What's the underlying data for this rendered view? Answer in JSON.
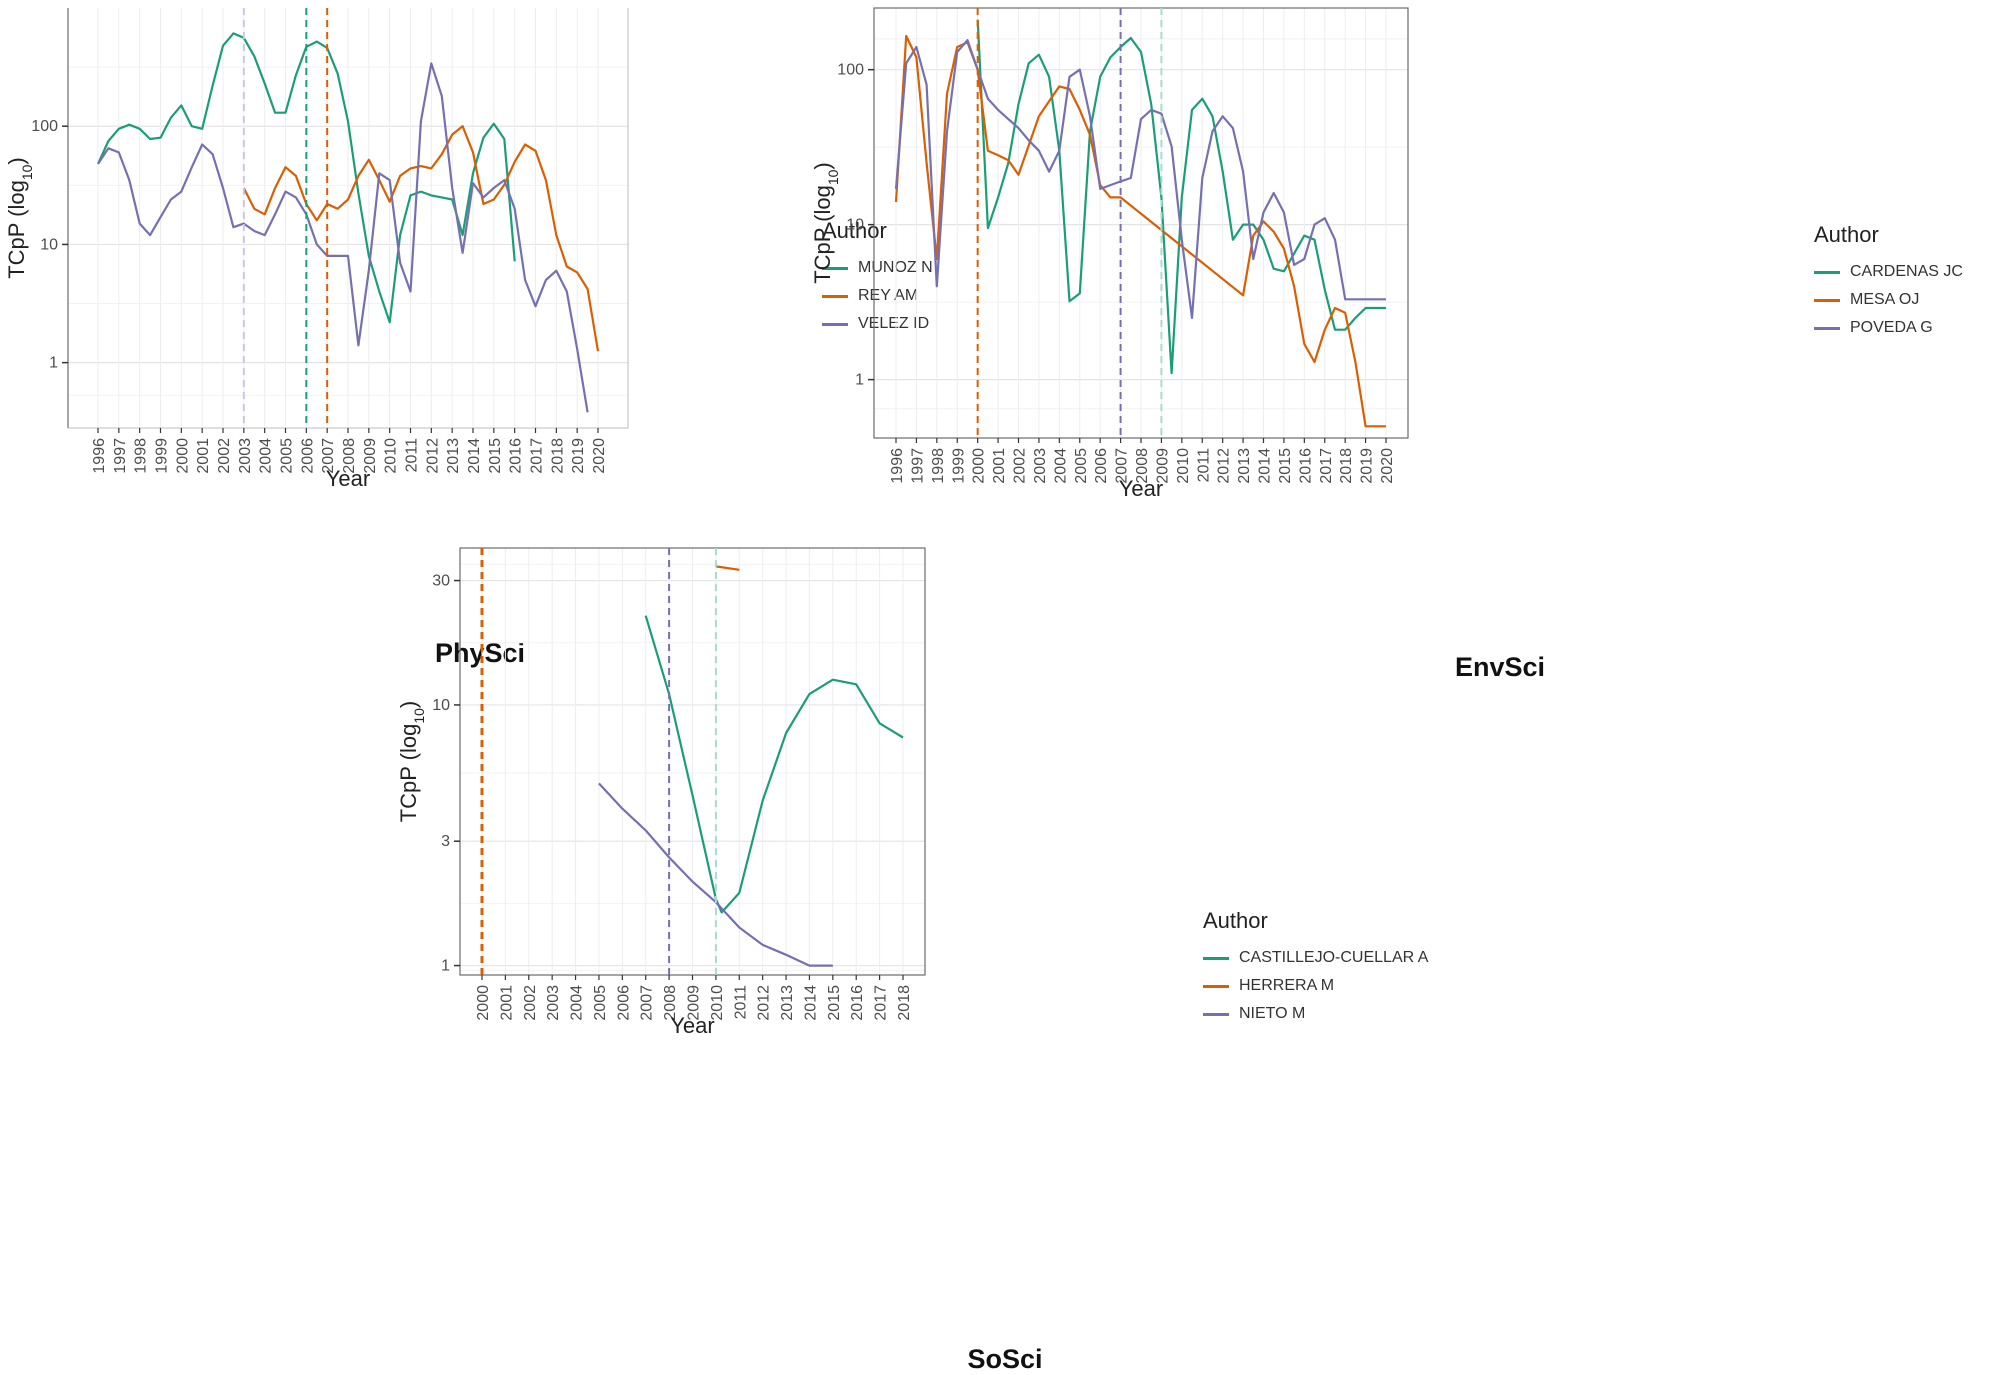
{
  "chart_data": [
    {
      "id": "physci",
      "type": "line",
      "caption": "PhySci",
      "xlabel": "Year",
      "ylabel": "TCpP (log10)",
      "ylabel_main": "TCpP (log",
      "ylabel_sub": "10",
      "ylabel_close": ")",
      "yscale": "log10",
      "ylim": [
        0.28,
        1000
      ],
      "yticks": [
        1,
        10,
        100
      ],
      "ytick_labels": [
        "1",
        "10",
        "100"
      ],
      "categories": [
        "1996",
        "1997",
        "1998",
        "1999",
        "2000",
        "2001",
        "2002",
        "2003",
        "2004",
        "2005",
        "2006",
        "2007",
        "2008",
        "2009",
        "2010",
        "2011",
        "2012",
        "2013",
        "2014",
        "2015",
        "2016",
        "2017",
        "2018",
        "2019",
        "2020"
      ],
      "legend_title": "Author",
      "series": [
        {
          "name": "MUNOZ N",
          "color": "#1b9e77",
          "x": [
            1996,
            1996.5,
            1997,
            1997.5,
            1998,
            1998.5,
            1999,
            1999.5,
            2000,
            2000.5,
            2001,
            2001.5,
            2002,
            2002.5,
            2003,
            2003.5,
            2004,
            2004.5,
            2005,
            2005.5,
            2006,
            2006.5,
            2007,
            2007.5,
            2008,
            2008.5,
            2009,
            2009.5,
            2010,
            2010.5,
            2011,
            2011.5,
            2012,
            2012.5,
            2013,
            2013.5,
            2014,
            2014.5,
            2015,
            2015.5,
            2016
          ],
          "y": [
            48,
            75,
            95,
            103,
            95,
            78,
            80,
            118,
            150,
            100,
            95,
            220,
            480,
            610,
            560,
            390,
            230,
            130,
            130,
            270,
            470,
            520,
            460,
            280,
            110,
            27,
            8,
            4,
            2.2,
            12,
            26,
            28,
            26,
            25,
            24,
            12,
            40,
            80,
            105,
            78,
            7.2
          ]
        },
        {
          "name": "REY AM",
          "color": "#d95f02",
          "x": [
            2003,
            2003.5,
            2004,
            2004.5,
            2005,
            2005.5,
            2006,
            2006.5,
            2007,
            2007.5,
            2008,
            2008.5,
            2009,
            2009.5,
            2010,
            2010.5,
            2011,
            2011.5,
            2012,
            2012.5,
            2013,
            2013.5,
            2014,
            2014.5,
            2015,
            2015.5,
            2016,
            2016.5,
            2017,
            2017.5,
            2018,
            2018.5,
            2019,
            2019.5,
            2020
          ],
          "y": [
            30,
            20,
            18,
            30,
            45,
            38,
            22,
            16,
            22,
            20,
            24,
            38,
            52,
            35,
            23,
            38,
            44,
            46,
            44,
            58,
            85,
            100,
            60,
            22,
            24,
            32,
            50,
            70,
            62,
            35,
            12,
            6.5,
            5.8,
            4.2,
            1.25
          ]
        },
        {
          "name": "VELEZ ID",
          "color": "#7570b3",
          "x": [
            1996,
            1996.5,
            1997,
            1997.5,
            1998,
            1998.5,
            1999,
            1999.5,
            2000,
            2000.5,
            2001,
            2001.5,
            2002,
            2002.5,
            2003,
            2003.5,
            2004,
            2004.5,
            2005,
            2005.5,
            2006,
            2006.5,
            2007,
            2007.5,
            2008,
            2008.5,
            2009,
            2009.5,
            2010,
            2010.5,
            2011,
            2011.5,
            2012,
            2012.5,
            2013,
            2013.5,
            2014,
            2014.5,
            2015,
            2015.5,
            2016,
            2016.5,
            2017,
            2017.5,
            2018,
            2018.5,
            2019,
            2019.5
          ],
          "y": [
            48,
            65,
            60,
            35,
            15,
            12,
            17,
            24,
            28,
            45,
            70,
            58,
            30,
            14,
            15,
            13,
            12,
            18,
            28,
            25,
            18,
            10,
            8,
            8,
            8,
            1.4,
            6,
            40,
            35,
            7,
            4,
            110,
            340,
            180,
            30,
            8.5,
            33,
            25,
            30,
            35,
            20,
            5,
            3,
            5,
            6,
            4,
            1.3,
            0.38
          ]
        }
      ],
      "vlines": [
        {
          "x": 2003,
          "color": "#c9c7e2",
          "width": 2
        },
        {
          "x": 2006,
          "color": "#1b9e77",
          "width": 2
        },
        {
          "x": 2007,
          "color": "#d95f02",
          "width": 2
        }
      ]
    },
    {
      "id": "envsci",
      "type": "line",
      "caption": "EnvSci",
      "xlabel": "Year",
      "ylabel": "TCpP (log10)",
      "ylabel_main": "TCpP (log",
      "ylabel_sub": "10",
      "ylabel_close": ")",
      "yscale": "log10",
      "ylim": [
        0.42,
        250
      ],
      "yticks": [
        1,
        10,
        100
      ],
      "ytick_labels": [
        "1",
        "10",
        "100"
      ],
      "categories": [
        "1996",
        "1997",
        "1998",
        "1999",
        "2000",
        "2001",
        "2002",
        "2003",
        "2004",
        "2005",
        "2006",
        "2007",
        "2008",
        "2009",
        "2010",
        "2011",
        "2012",
        "2013",
        "2014",
        "2015",
        "2016",
        "2017",
        "2018",
        "2019",
        "2020"
      ],
      "legend_title": "Author",
      "series": [
        {
          "name": "CARDENAS JC",
          "color": "#1b9e77",
          "x": [
            2000,
            2000.5,
            2001,
            2001.5,
            2002,
            2002.5,
            2003,
            2003.5,
            2004,
            2004.5,
            2005,
            2005.5,
            2006,
            2006.5,
            2007,
            2007.5,
            2008,
            2008.5,
            2009,
            2009.5,
            2010,
            2010.5,
            2011,
            2011.5,
            2012,
            2012.5,
            2013,
            2013.5,
            2014,
            2014.5,
            2015,
            2015.5,
            2016,
            2016.5,
            2017,
            2017.5,
            2018,
            2018.5,
            2019,
            2019.5,
            2020
          ],
          "y": [
            210,
            9.5,
            15,
            25,
            60,
            110,
            125,
            90,
            30,
            3.2,
            3.6,
            40,
            90,
            120,
            140,
            160,
            130,
            60,
            15,
            1.1,
            15,
            55,
            65,
            50,
            22,
            8,
            10,
            10,
            8,
            5.2,
            5,
            6.5,
            8.5,
            8,
            3.8,
            2.1,
            2.1,
            2.5,
            2.9,
            2.9,
            2.9
          ]
        },
        {
          "name": "MESA OJ",
          "color": "#d95f02",
          "x": [
            1996,
            1996.5,
            1997,
            1997.5,
            1998,
            1998.5,
            1999,
            1999.5,
            2000,
            2000.5,
            2001,
            2001.5,
            2002,
            2003,
            2004,
            2004.5,
            2005,
            2005.5,
            2006,
            2006.5,
            2007,
            2013,
            2013.5,
            2014,
            2014.5,
            2015,
            2015.5,
            2016,
            2016.5,
            2017,
            2017.5,
            2018,
            2018.5,
            2019,
            2019.5,
            2020
          ],
          "y": [
            14,
            165,
            120,
            25,
            6,
            70,
            140,
            150,
            100,
            30,
            28,
            26,
            21,
            50,
            78,
            75,
            55,
            38,
            18,
            15,
            15,
            3.5,
            8.5,
            10.5,
            9,
            7,
            4,
            1.7,
            1.3,
            2.1,
            2.9,
            2.7,
            1.3,
            0.5,
            0.5,
            0.5
          ]
        },
        {
          "name": "POVEDA G",
          "color": "#7570b3",
          "x": [
            1996,
            1996.5,
            1997,
            1997.5,
            1998,
            1998.5,
            1999,
            1999.5,
            2000,
            2000.5,
            2001,
            2001.5,
            2002,
            2002.5,
            2003,
            2003.5,
            2004,
            2004.5,
            2005,
            2005.5,
            2006,
            2006.5,
            2007,
            2007.5,
            2008,
            2008.5,
            2009,
            2009.5,
            2010,
            2010.5,
            2011,
            2011.5,
            2012,
            2012.5,
            2013,
            2013.5,
            2014,
            2014.5,
            2015,
            2015.5,
            2016,
            2016.5,
            2017,
            2017.5,
            2018,
            2018.5,
            2019,
            2019.5,
            2020
          ],
          "y": [
            17,
            110,
            140,
            80,
            4,
            40,
            130,
            155,
            100,
            65,
            55,
            48,
            42,
            35,
            30,
            22,
            30,
            90,
            100,
            50,
            17,
            18,
            19,
            20,
            48,
            55,
            52,
            32,
            8,
            2.5,
            20,
            40,
            50,
            42,
            22,
            6,
            12,
            16,
            12,
            5.5,
            6,
            10,
            11,
            8,
            3.3,
            3.3,
            3.3,
            3.3,
            3.3
          ]
        }
      ],
      "vlines": [
        {
          "x": 2000,
          "color": "#d95f02",
          "width": 2
        },
        {
          "x": 2007,
          "color": "#7570b3",
          "width": 2
        },
        {
          "x": 2009,
          "color": "#a8dccb",
          "width": 2
        }
      ]
    },
    {
      "id": "sosci",
      "type": "line",
      "caption": "SoSci",
      "xlabel": "Year",
      "ylabel": "TCpP (log10)",
      "ylabel_main": "TCpP (log",
      "ylabel_sub": "10",
      "ylabel_close": ")",
      "yscale": "log10",
      "ylim": [
        0.92,
        40
      ],
      "yticks": [
        1,
        3,
        10,
        30
      ],
      "ytick_labels": [
        "1",
        "3",
        "10",
        "30"
      ],
      "categories": [
        "2000",
        "2001",
        "2002",
        "2003",
        "2004",
        "2005",
        "2006",
        "2007",
        "2008",
        "2009",
        "2010",
        "2011",
        "2012",
        "2013",
        "2014",
        "2015",
        "2016",
        "2017",
        "2018"
      ],
      "legend_title": "Author",
      "series": [
        {
          "name": "CASTILLEJO-CUELLAR A",
          "color": "#1b9e77",
          "x": [
            2007,
            2008,
            2009,
            2010,
            2010.25,
            2011,
            2012,
            2013,
            2014,
            2015,
            2016,
            2017,
            2018
          ],
          "y": [
            22,
            11,
            4.5,
            1.8,
            1.6,
            1.9,
            4.3,
            7.8,
            11,
            12.5,
            12,
            8.5,
            7.5
          ]
        },
        {
          "name": "HERRERA M",
          "color": "#d95f02",
          "x": [
            2010,
            2011
          ],
          "y": [
            34,
            33
          ]
        },
        {
          "name": "NIETO M",
          "color": "#7570b3",
          "x": [
            2005,
            2006,
            2007,
            2008,
            2009,
            2010,
            2011,
            2012,
            2013,
            2014,
            2015
          ],
          "y": [
            5,
            4,
            3.3,
            2.6,
            2.1,
            1.75,
            1.4,
            1.2,
            1.1,
            1.0,
            1.0
          ]
        }
      ],
      "vlines": [
        {
          "x": 2000,
          "color": "#d95f02",
          "width": 3
        },
        {
          "x": 2008,
          "color": "#7570b3",
          "width": 2
        },
        {
          "x": 2010,
          "color": "#a8dccb",
          "width": 2
        }
      ]
    }
  ]
}
